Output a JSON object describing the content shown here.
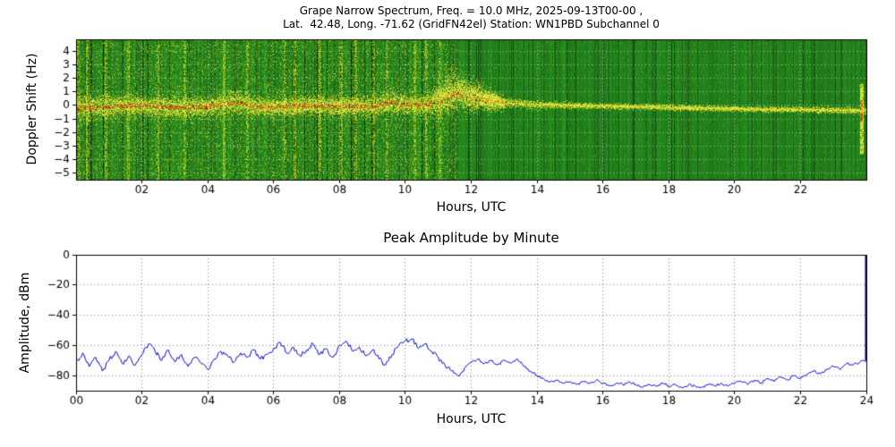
{
  "colors": {
    "background": "#ffffff",
    "spectrogram_green": "#2d8a2d",
    "power_yellow": "#e4e028",
    "peak_red": "#d62800",
    "amplitude_blue": "#0000dd",
    "spike_navy": "#000099",
    "axis_black": "#000000"
  },
  "chart_data": [
    {
      "type": "heatmap",
      "title": "Grape Narrow Spectrum, Freq. = 10.0 MHz, 2025-09-13T00-00 ,",
      "subtitle": "Lat.  42.48, Long. -71.62 (GridFN42el) Station: WN1PBD Subchannel 0",
      "xlabel": "Hours, UTC",
      "ylabel": "Doppler Shift (Hz)",
      "xlim": [
        0,
        24
      ],
      "ylim": [
        -5.5,
        4.9
      ],
      "xtick_values": [
        2,
        4,
        6,
        8,
        10,
        12,
        14,
        16,
        18,
        20,
        22
      ],
      "xtick_labels": [
        "02",
        "04",
        "06",
        "08",
        "10",
        "12",
        "14",
        "16",
        "18",
        "20",
        "22"
      ],
      "ytick_values": [
        4,
        3,
        2,
        1,
        0,
        -1,
        -2,
        -3,
        -4,
        -5
      ],
      "ytick_labels": [
        "4",
        "3",
        "2",
        "1",
        "0",
        "−1",
        "−2",
        "−3",
        "−4",
        "−5"
      ],
      "grid": true,
      "colormap_hint": "green background = low power, yellow = high power, red = spectral peak",
      "artifact_columns": [
        0.08,
        0.35,
        0.9,
        1.6,
        2.5,
        3.3,
        4.5,
        5.2,
        6.35,
        6.65,
        7.4,
        8.05,
        8.5,
        9.05,
        9.45,
        10.3,
        10.65,
        11.05
      ],
      "edge_flare_hour": 23.85,
      "carrier_trace": {
        "x": [
          0,
          1,
          2,
          3,
          4,
          4.6,
          5,
          5.4,
          6,
          7,
          8,
          9,
          9.5,
          10,
          10.5,
          11,
          11.3,
          11.6,
          12,
          12.5,
          13,
          14,
          15,
          16,
          17,
          18,
          19,
          20,
          21,
          22,
          23,
          24
        ],
        "doppler_hz": [
          -0.2,
          -0.1,
          0,
          -0.15,
          -0.1,
          0.15,
          0.2,
          -0.1,
          -0.1,
          0,
          -0.05,
          -0.1,
          0.25,
          0.1,
          0,
          0.3,
          0.7,
          0.9,
          0.6,
          0.35,
          0.2,
          0.05,
          0,
          -0.05,
          -0.1,
          -0.15,
          -0.2,
          -0.25,
          -0.3,
          -0.3,
          -0.35,
          -0.4
        ],
        "width_hz": [
          0.5,
          0.4,
          0.35,
          0.4,
          0.35,
          0.45,
          0.4,
          0.4,
          0.35,
          0.35,
          0.35,
          0.4,
          0.45,
          0.4,
          0.35,
          0.55,
          0.65,
          0.6,
          0.5,
          0.35,
          0.2,
          0.15,
          0.12,
          0.1,
          0.1,
          0.1,
          0.1,
          0.1,
          0.1,
          0.1,
          0.12,
          0.12
        ],
        "has_red_peak": true
      }
    },
    {
      "type": "line",
      "title": "Peak Amplitude by Minute",
      "xlabel": "Hours, UTC",
      "ylabel": "Amplitude, dBm",
      "xlim": [
        0,
        24
      ],
      "ylim": [
        -90,
        0
      ],
      "xtick_values": [
        0,
        2,
        4,
        6,
        8,
        10,
        12,
        14,
        16,
        18,
        20,
        22,
        24
      ],
      "xtick_labels": [
        "00",
        "02",
        "04",
        "06",
        "08",
        "10",
        "12",
        "14",
        "16",
        "18",
        "20",
        "22",
        "24"
      ],
      "ytick_values": [
        0,
        -20,
        -40,
        -60,
        -80
      ],
      "ytick_labels": [
        "0",
        "−20",
        "−40",
        "−60",
        "−80"
      ],
      "grid": true,
      "line_color": "#0000dd",
      "spike_color": "#000099",
      "x_start": 0,
      "x_step": 0.2,
      "values": [
        -71,
        -65,
        -74,
        -68,
        -77,
        -70,
        -64,
        -72,
        -67,
        -73,
        -66,
        -59,
        -64,
        -70,
        -63,
        -71,
        -66,
        -74,
        -68,
        -72,
        -76,
        -69,
        -64,
        -67,
        -71,
        -65,
        -68,
        -63,
        -69,
        -66,
        -62,
        -58,
        -65,
        -61,
        -67,
        -63,
        -59,
        -66,
        -62,
        -68,
        -60,
        -57,
        -64,
        -61,
        -67,
        -63,
        -69,
        -73,
        -66,
        -60,
        -57,
        -56,
        -62,
        -59,
        -64,
        -68,
        -73,
        -77,
        -80,
        -75,
        -71,
        -69,
        -72,
        -70,
        -73,
        -70,
        -72,
        -69,
        -74,
        -77,
        -80,
        -82,
        -84,
        -83,
        -85,
        -84,
        -86,
        -84,
        -85,
        -83,
        -85,
        -87,
        -85,
        -86,
        -84,
        -86,
        -88,
        -86,
        -87,
        -85,
        -87,
        -86,
        -88,
        -86,
        -87,
        -88,
        -86,
        -87,
        -85,
        -87,
        -85,
        -84,
        -86,
        -83,
        -85,
        -82,
        -84,
        -81,
        -83,
        -80,
        -82,
        -79,
        -77,
        -79,
        -76,
        -74,
        -76,
        -72,
        -73,
        -71,
        -70
      ],
      "edge_spike": {
        "x": 24,
        "to_dbm": 0
      }
    }
  ]
}
